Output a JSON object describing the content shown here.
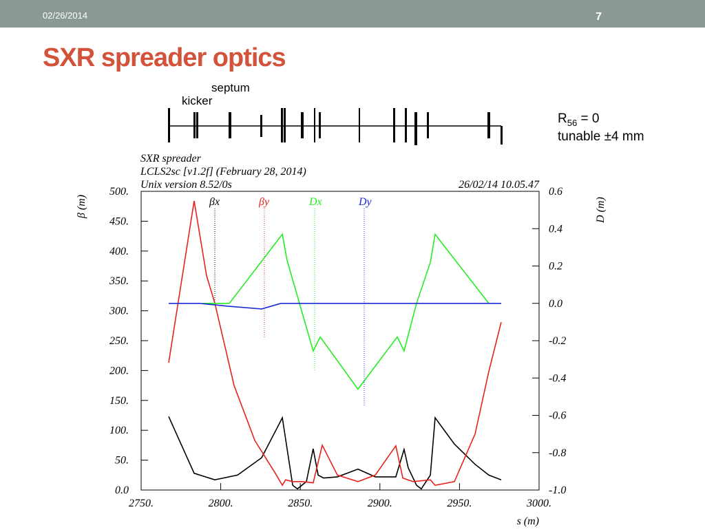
{
  "slide": {
    "date": "02/26/2014",
    "page": "7",
    "title": "SXR spreader optics",
    "lattice_labels": [
      "septum",
      "kicker"
    ],
    "r56": {
      "base": "R",
      "sub": "56",
      "rest": " = 0"
    },
    "tunable": "tunable ±4 mm"
  },
  "chart_data": {
    "type": "line",
    "title_lines": [
      "SXR spreader",
      "LCLS2sc [v1.2f] (February 28, 2014)",
      "Unix version 8.52/0s"
    ],
    "timestamp": "26/02/14  10.05.47",
    "ylabel": "β  (m)",
    "y2label": "D  (m)",
    "xlabel": "s (m)",
    "xlim": [
      2750,
      3000
    ],
    "xticks": [
      {
        "value": 2750,
        "label": "2750."
      },
      {
        "value": 2800,
        "label": "2800."
      },
      {
        "value": 2850,
        "label": "2850."
      },
      {
        "value": 2900,
        "label": "2900."
      },
      {
        "value": 2950,
        "label": "2950."
      },
      {
        "value": 3000,
        "label": "3000."
      }
    ],
    "ylim": [
      0,
      500
    ],
    "yticks": [
      {
        "value": 0,
        "label": "0.0"
      },
      {
        "value": 50,
        "label": "50."
      },
      {
        "value": 100,
        "label": "100."
      },
      {
        "value": 150,
        "label": "150."
      },
      {
        "value": 200,
        "label": "200."
      },
      {
        "value": 250,
        "label": "250."
      },
      {
        "value": 300,
        "label": "300."
      },
      {
        "value": 350,
        "label": "350."
      },
      {
        "value": 400,
        "label": "400."
      },
      {
        "value": 450,
        "label": "450."
      },
      {
        "value": 500,
        "label": "500."
      }
    ],
    "y2lim": [
      -1.0,
      0.6
    ],
    "y2ticks": [
      {
        "value": -1.0,
        "label": "-1.0"
      },
      -0.8,
      -0.6,
      -0.4,
      -0.2,
      {
        "value": 0,
        "label": "0.0"
      },
      0.2,
      0.4,
      0.6
    ],
    "series": [
      {
        "name": "βx",
        "color": "#000000",
        "x": [
          2767.3,
          2783.3,
          2796.3,
          2810.6,
          2825.7,
          2838.7,
          2845.2,
          2848.2,
          2853.8,
          2858.1,
          2861.2,
          2864.6,
          2873.3,
          2886.2,
          2897.1,
          2910.0,
          2915.2,
          2917.8,
          2923.0,
          2926.0,
          2931.7,
          2934.7,
          2946.8,
          2959.8,
          2968.4,
          2976.2
        ],
        "values": [
          123,
          28,
          17,
          25,
          54,
          121,
          8,
          2,
          14,
          69,
          25,
          20,
          22,
          35,
          22,
          22,
          68,
          37,
          8,
          2,
          25,
          121,
          77,
          43,
          25,
          17
        ]
      },
      {
        "name": "βy",
        "color": "#e8201c",
        "x": [
          2767.3,
          2783.3,
          2791.1,
          2796.3,
          2808.4,
          2821.4,
          2834.3,
          2838.7,
          2840.8,
          2845.2,
          2851.6,
          2858.1,
          2863.8,
          2873.3,
          2886.2,
          2897.1,
          2910.0,
          2914.4,
          2920.8,
          2931.7,
          2934.7,
          2946.8,
          2959.8,
          2968.4,
          2976.2
        ],
        "values": [
          213,
          484,
          359,
          313,
          175,
          83,
          28,
          8,
          17,
          14,
          14,
          12,
          75,
          25,
          14,
          25,
          74,
          20,
          14,
          17,
          8,
          14,
          94,
          198,
          281
        ]
      },
      {
        "name": "Dx",
        "color": "#22ee22",
        "axis": "y2",
        "x": [
          2788.9,
          2805.4,
          2838.7,
          2841.7,
          2858.1,
          2862.5,
          2886.2,
          2910.9,
          2915.2,
          2923.0,
          2931.7,
          2934.7,
          2968.4
        ],
        "values": [
          0,
          0,
          0.37,
          0.23,
          -0.255,
          -0.18,
          -0.46,
          -0.18,
          -0.255,
          0,
          0.22,
          0.37,
          0
        ]
      },
      {
        "name": "Dy",
        "color": "#1a2ad8",
        "axis": "y2",
        "x": [
          2767.3,
          2786.8,
          2804.1,
          2825.7,
          2837.8,
          2976.2
        ],
        "values": [
          0,
          0,
          -0.015,
          -0.03,
          0,
          0
        ]
      }
    ]
  }
}
